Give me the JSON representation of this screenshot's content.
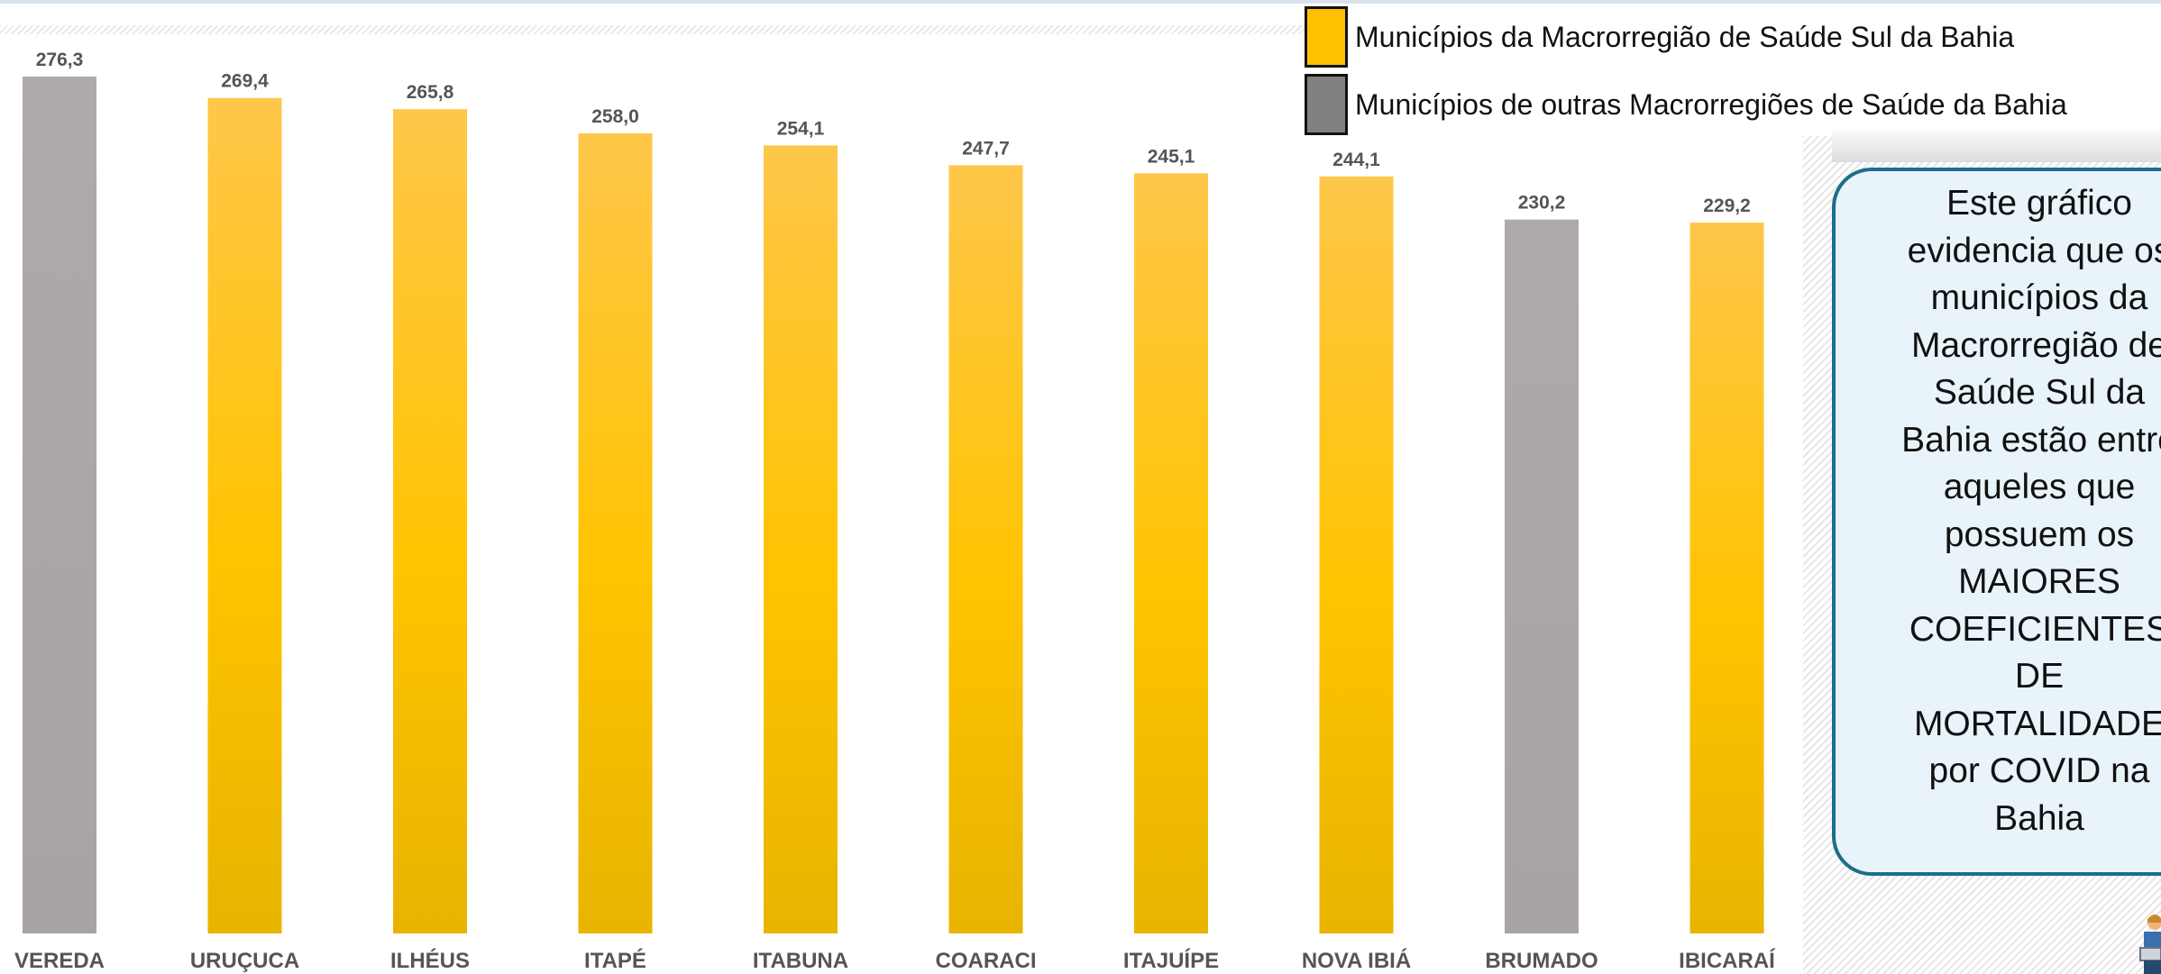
{
  "chart_data": {
    "type": "bar",
    "categories": [
      "VEREDA",
      "URUÇUCA",
      "ILHÉUS",
      "ITAPÉ",
      "ITABUNA",
      "COARACI",
      "ITAJUÍPE",
      "NOVA IBIÁ",
      "BRUMADO",
      "IBICARAÍ"
    ],
    "values": [
      276.3,
      269.4,
      265.8,
      258.0,
      254.1,
      247.7,
      245.1,
      244.1,
      230.2,
      229.2
    ],
    "value_labels": [
      "276,3",
      "269,4",
      "265,8",
      "258,0",
      "254,1",
      "247,7",
      "245,1",
      "244,1",
      "230,2",
      "229,2"
    ],
    "groups": [
      "outras",
      "sul",
      "sul",
      "sul",
      "sul",
      "sul",
      "sul",
      "sul",
      "outras",
      "sul"
    ],
    "title": "",
    "xlabel": "",
    "ylabel": "",
    "ylim": [
      0,
      276.3
    ],
    "grid": false,
    "legend_position": "top-right"
  },
  "legend": {
    "items": [
      {
        "label": "Municípios da Macrorregião de Saúde Sul da Bahia",
        "color": "#FFC000"
      },
      {
        "label": "Municípios de outras Macrorregiões de Saúde da Bahia",
        "color": "#808080"
      }
    ]
  },
  "callout": {
    "text": "Este gráfico\nevidencia que os\nmunicípios da\nMacrorregião de\nSaúde Sul da\nBahia estão entre\naqueles que\npossuem os\nMAIORES\nCOEFICIENTES\nDE\nMORTALIDADE\npor COVID na\nBahia"
  },
  "colors": {
    "sul_top": "#FFC74A",
    "sul_mid": "#FFC400",
    "sul_bottom": "#E8B400",
    "outras": "#ABA7A7"
  },
  "icon": {
    "name": "person-with-laptop-icon"
  }
}
